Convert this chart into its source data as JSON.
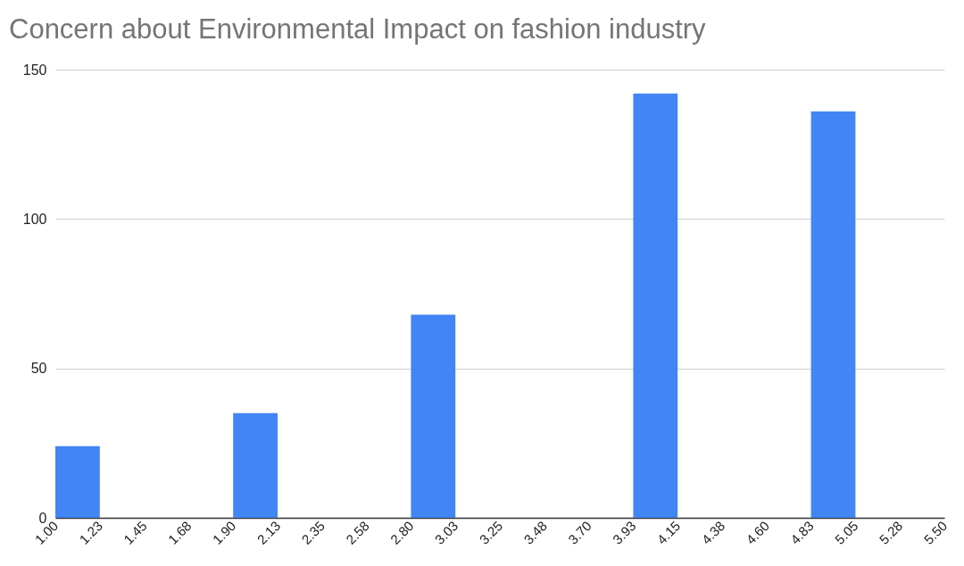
{
  "chart_data": {
    "type": "histogram",
    "title": "Concern about Environmental Impact on fashion industry",
    "bins": [
      1,
      1.225,
      1.45,
      1.675,
      1.9,
      2.125,
      2.35,
      2.575,
      2.8,
      3.025,
      3.25,
      3.475,
      3.7,
      3.925,
      4.15,
      4.375,
      4.6,
      4.825,
      5.05,
      5.275,
      5.5
    ],
    "values": [
      24,
      0,
      0,
      0,
      35,
      0,
      0,
      0,
      68,
      0,
      0,
      0,
      0,
      142,
      0,
      0,
      0,
      136,
      0,
      0
    ],
    "color": "#4285f4",
    "xlim": [
      1,
      5.5
    ],
    "xticks": [
      {
        "value": 1,
        "label": "1.00"
      },
      {
        "value": 1.225,
        "label": "1.23"
      },
      {
        "value": 1.45,
        "label": "1.45"
      },
      {
        "value": 1.675,
        "label": "1.68"
      },
      {
        "value": 1.9,
        "label": "1.90"
      },
      {
        "value": 2.125,
        "label": "2.13"
      },
      {
        "value": 2.35,
        "label": "2.35"
      },
      {
        "value": 2.575,
        "label": "2.58"
      },
      {
        "value": 2.8,
        "label": "2.80"
      },
      {
        "value": 3.025,
        "label": "3.03"
      },
      {
        "value": 3.25,
        "label": "3.25"
      },
      {
        "value": 3.475,
        "label": "3.48"
      },
      {
        "value": 3.7,
        "label": "3.70"
      },
      {
        "value": 3.925,
        "label": "3.93"
      },
      {
        "value": 4.15,
        "label": "4.15"
      },
      {
        "value": 4.375,
        "label": "4.38"
      },
      {
        "value": 4.6,
        "label": "4.60"
      },
      {
        "value": 4.825,
        "label": "4.83"
      },
      {
        "value": 5.05,
        "label": "5.05"
      },
      {
        "value": 5.275,
        "label": "5.28"
      },
      {
        "value": 5.5,
        "label": "5.50"
      }
    ],
    "ylim": [
      0,
      150
    ],
    "yticks": [
      0,
      50,
      100,
      150
    ],
    "grid": "y"
  }
}
